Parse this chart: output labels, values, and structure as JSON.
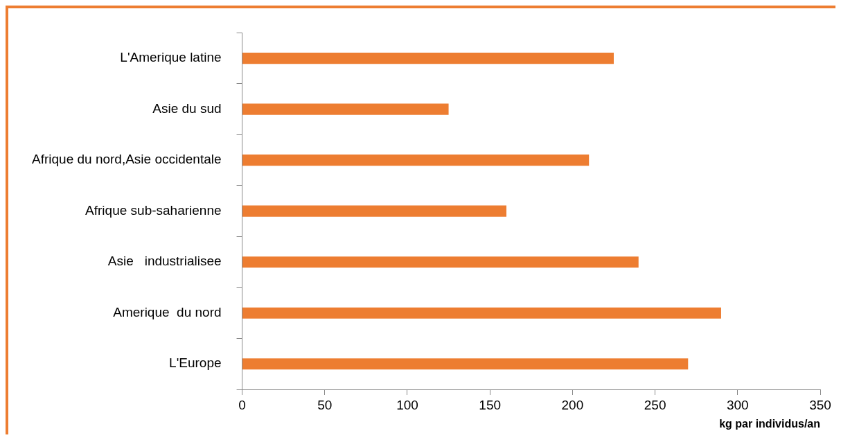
{
  "chart_data": {
    "type": "bar",
    "orientation": "horizontal",
    "categories": [
      "L'Amerique latine",
      "Asie du sud",
      "Afrique du nord,Asie occidentale",
      "Afrique sub-saharienne",
      "Asie   industrialisee",
      "Amerique  du nord",
      "L'Europe"
    ],
    "values": [
      225,
      125,
      210,
      160,
      240,
      290,
      270
    ],
    "color": "#ed7d31",
    "xlabel": "kg par individus/an",
    "xlim": [
      0,
      350
    ],
    "xticks": [
      0,
      50,
      100,
      150,
      200,
      250,
      300,
      350
    ],
    "grid": false,
    "legend": false
  }
}
